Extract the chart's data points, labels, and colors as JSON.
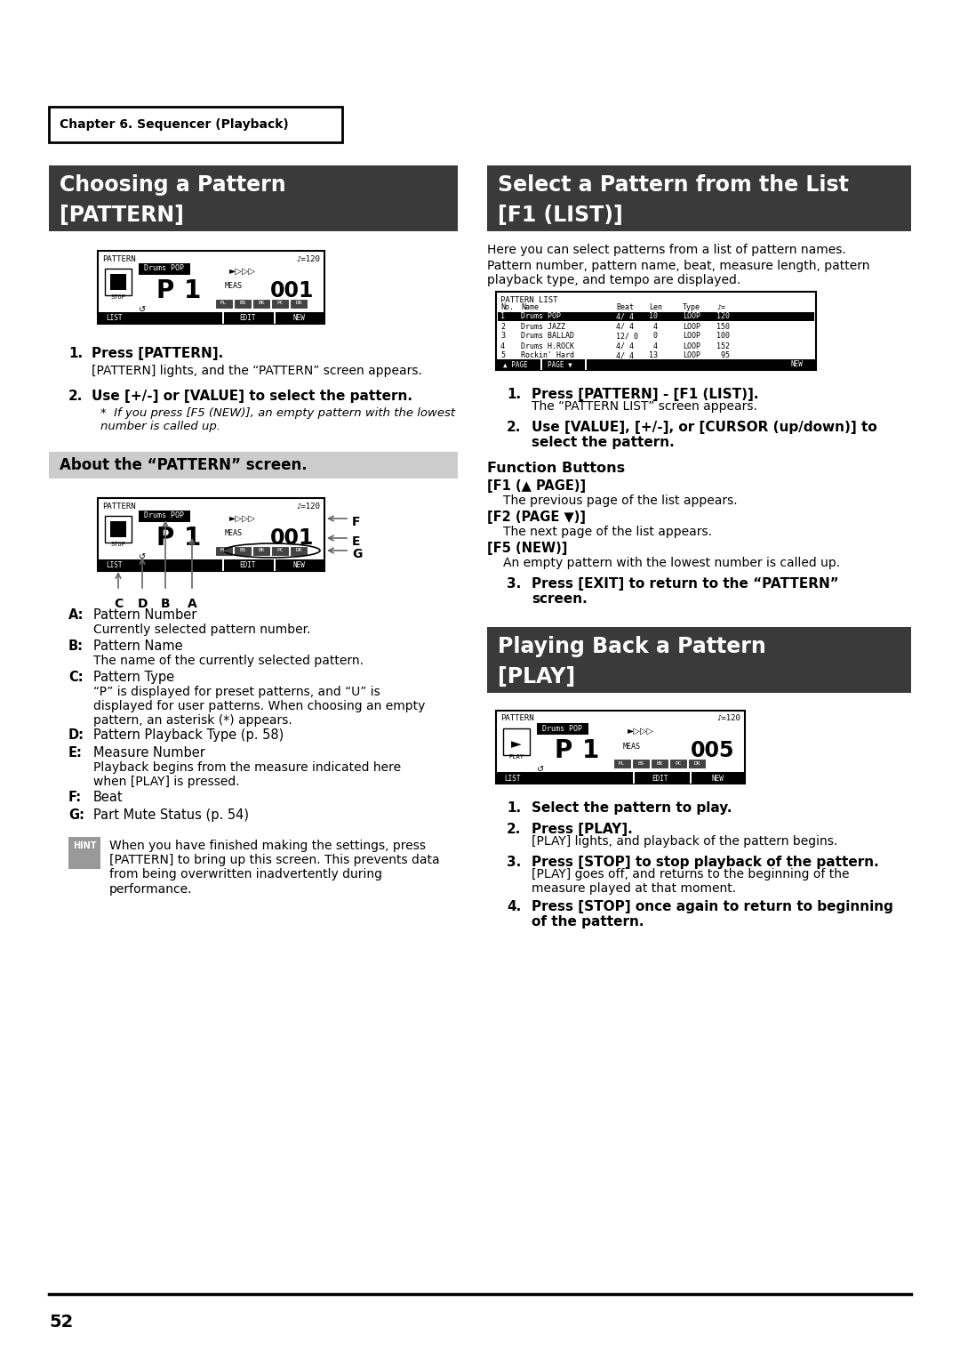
{
  "page_bg": "#ffffff",
  "page_number": "52",
  "chapter_box_text": "Chapter 6. Sequencer (Playback)",
  "section1_title_line1": "Choosing a Pattern",
  "section1_title_line2": "[PATTERN]",
  "section1_title_bg": "#3a3a3a",
  "section1_title_color": "#ffffff",
  "section2_title": "About the “PATTERN” screen.",
  "section2_title_bg": "#cccccc",
  "section2_title_color": "#000000",
  "section3_title_line1": "Select a Pattern from the List",
  "section3_title_line2": "[F1 (LIST)]",
  "section3_title_bg": "#3a3a3a",
  "section3_title_color": "#ffffff",
  "section4_title_line1": "Playing Back a Pattern",
  "section4_title_line2": "[PLAY]",
  "section4_title_bg": "#3a3a3a",
  "section4_title_color": "#ffffff",
  "step1_bold": "Press [PATTERN].",
  "step1_text": "[PATTERN] lights, and the “PATTERN” screen appears.",
  "step2_bold": "Use [+/-] or [VALUE] to select the pattern.",
  "step2_italic": "If you press [F5 (NEW)], an empty pattern with the lowest\nnumber is called up.",
  "hint_text": "When you have finished making the settings, press\n[PATTERN] to bring up this screen. This prevents data\nfrom being overwritten inadvertently during\nperformance.",
  "right_intro1": "Here you can select patterns from a list of pattern names.",
  "right_intro2": "Pattern number, pattern name, beat, measure length, pattern\nplayback type, and tempo are displayed.",
  "right_step1_bold": "Press [PATTERN] - [F1 (LIST)].",
  "right_step1_text": "The “PATTERN LIST” screen appears.",
  "right_step2_bold": "Use [VALUE], [+/-], or [CURSOR (up/down)] to\nselect the pattern.",
  "right_func_title": "Function Buttons",
  "right_f1": "[F1 (▲ PAGE)]",
  "right_f1_text": "The previous page of the list appears.",
  "right_f2": "[F2 (PAGE ▼)]",
  "right_f2_text": "The next page of the list appears.",
  "right_f5": "[F5 (NEW)]",
  "right_f5_text": "An empty pattern with the lowest number is called up.",
  "right_step3_bold": "Press [EXIT] to return to the “PATTERN”\nscreen.",
  "play_step1_bold": "Select the pattern to play.",
  "play_step2_bold": "Press [PLAY].",
  "play_step2_text": "[PLAY] lights, and playback of the pattern begins.",
  "play_step3_bold": "Press [STOP] to stop playback of the pattern.",
  "play_step3_text": "[PLAY] goes off, and returns to the beginning of the\nmeasure played at that moment.",
  "play_step4_bold": "Press [STOP] once again to return to beginning\nof the pattern."
}
